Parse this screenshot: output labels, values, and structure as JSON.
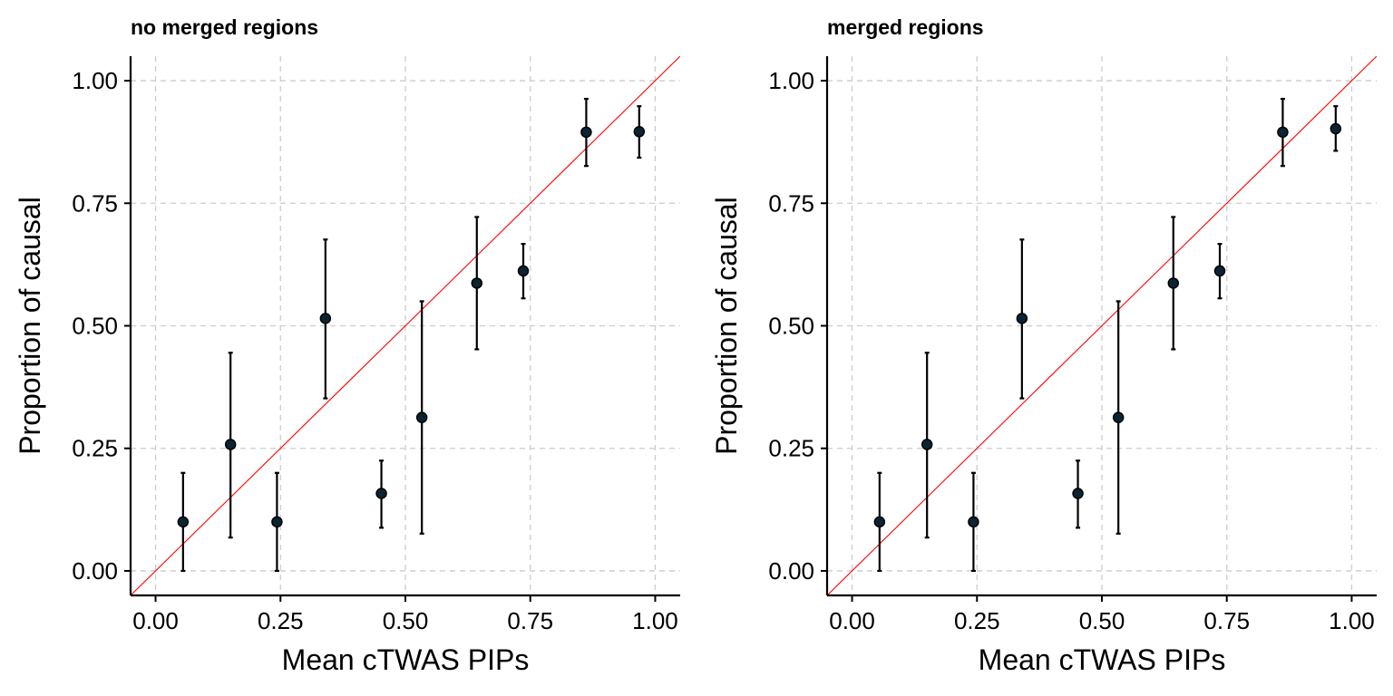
{
  "chart_data": [
    {
      "type": "scatter",
      "title": "no merged regions",
      "xlabel": "Mean cTWAS PIPs",
      "ylabel": "Proportion of causal",
      "xlim": [
        -0.05,
        1.05
      ],
      "ylim": [
        -0.05,
        1.05
      ],
      "xticks": [
        "0.00",
        "0.25",
        "0.50",
        "0.75",
        "1.00"
      ],
      "yticks": [
        "0.00",
        "0.25",
        "0.50",
        "0.75",
        "1.00"
      ],
      "reference_line": {
        "slope": 1,
        "intercept": 0,
        "color": "#ff0000"
      },
      "grid": true,
      "points": [
        {
          "x": 0.055,
          "y": 0.1,
          "lo": 0.0,
          "hi": 0.2
        },
        {
          "x": 0.15,
          "y": 0.258,
          "lo": 0.068,
          "hi": 0.445
        },
        {
          "x": 0.243,
          "y": 0.1,
          "lo": 0.0,
          "hi": 0.2
        },
        {
          "x": 0.34,
          "y": 0.515,
          "lo": 0.352,
          "hi": 0.676
        },
        {
          "x": 0.452,
          "y": 0.158,
          "lo": 0.088,
          "hi": 0.225
        },
        {
          "x": 0.533,
          "y": 0.313,
          "lo": 0.076,
          "hi": 0.55
        },
        {
          "x": 0.643,
          "y": 0.587,
          "lo": 0.452,
          "hi": 0.722
        },
        {
          "x": 0.736,
          "y": 0.612,
          "lo": 0.556,
          "hi": 0.667
        },
        {
          "x": 0.862,
          "y": 0.895,
          "lo": 0.826,
          "hi": 0.963
        },
        {
          "x": 0.968,
          "y": 0.896,
          "lo": 0.843,
          "hi": 0.948
        }
      ]
    },
    {
      "type": "scatter",
      "title": "merged regions",
      "xlabel": "Mean cTWAS PIPs",
      "ylabel": "Proportion of causal",
      "xlim": [
        -0.05,
        1.05
      ],
      "ylim": [
        -0.05,
        1.05
      ],
      "xticks": [
        "0.00",
        "0.25",
        "0.50",
        "0.75",
        "1.00"
      ],
      "yticks": [
        "0.00",
        "0.25",
        "0.50",
        "0.75",
        "1.00"
      ],
      "reference_line": {
        "slope": 1,
        "intercept": 0,
        "color": "#ff0000"
      },
      "grid": true,
      "points": [
        {
          "x": 0.055,
          "y": 0.1,
          "lo": 0.0,
          "hi": 0.2
        },
        {
          "x": 0.15,
          "y": 0.258,
          "lo": 0.068,
          "hi": 0.445
        },
        {
          "x": 0.243,
          "y": 0.1,
          "lo": 0.0,
          "hi": 0.2
        },
        {
          "x": 0.34,
          "y": 0.515,
          "lo": 0.352,
          "hi": 0.676
        },
        {
          "x": 0.452,
          "y": 0.158,
          "lo": 0.088,
          "hi": 0.225
        },
        {
          "x": 0.533,
          "y": 0.313,
          "lo": 0.076,
          "hi": 0.55
        },
        {
          "x": 0.643,
          "y": 0.587,
          "lo": 0.452,
          "hi": 0.722
        },
        {
          "x": 0.736,
          "y": 0.612,
          "lo": 0.556,
          "hi": 0.667
        },
        {
          "x": 0.862,
          "y": 0.895,
          "lo": 0.826,
          "hi": 0.963
        },
        {
          "x": 0.968,
          "y": 0.902,
          "lo": 0.857,
          "hi": 0.948
        }
      ]
    }
  ]
}
